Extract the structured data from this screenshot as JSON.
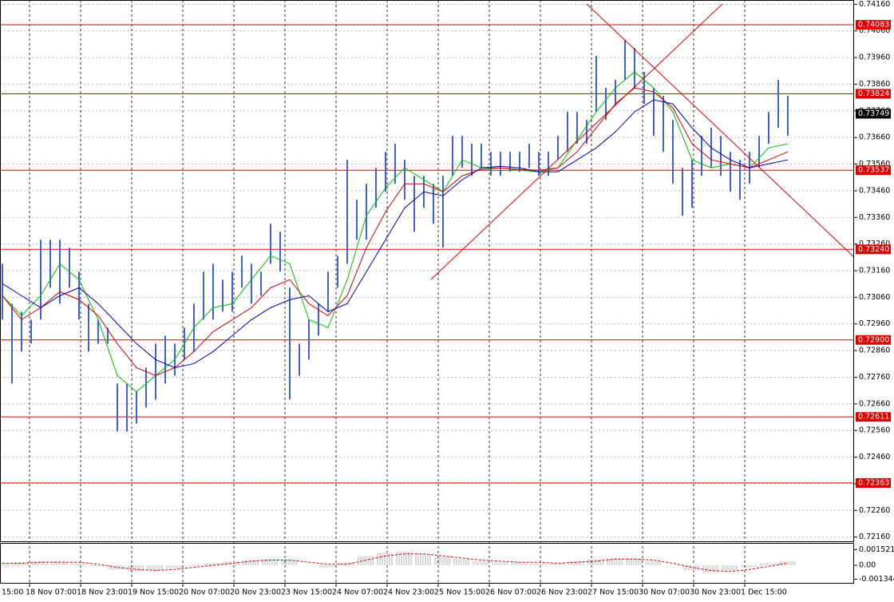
{
  "chart_data": {
    "type": "ohlc",
    "x_labels": [
      "15:00",
      "18 Nov 07:00",
      "18 Nov 23:00",
      "19 Nov 15:00",
      "20 Nov 07:00",
      "20 Nov 23:00",
      "23 Nov 15:00",
      "24 Nov 07:00",
      "24 Nov 23:00",
      "25 Nov 15:00",
      "26 Nov 07:00",
      "26 Nov 23:00",
      "27 Nov 15:00",
      "30 Nov 07:00",
      "30 Nov 23:00",
      "1 Dec 15:00"
    ],
    "high": [
      0.73186,
      0.73036,
      0.73006,
      0.72976,
      0.73276,
      0.73276,
      0.73276,
      0.73246,
      0.73156,
      0.73036,
      0.72976,
      0.72946,
      0.72736,
      0.72736,
      0.72706,
      0.72796,
      0.72886,
      0.72916,
      0.72886,
      0.72946,
      0.73036,
      0.73156,
      0.73186,
      0.73126,
      0.73156,
      0.73216,
      0.73186,
      0.73156,
      0.73336,
      0.73306,
      0.73096,
      0.72886,
      0.72976,
      0.73036,
      0.73156,
      0.73216,
      0.73576,
      0.73426,
      0.73486,
      0.73546,
      0.73606,
      0.73636,
      0.73576,
      0.73516,
      0.73516,
      0.73486,
      0.73516,
      0.73666,
      0.73666,
      0.73636,
      0.73636,
      0.73606,
      0.73606,
      0.73606,
      0.73606,
      0.73636,
      0.73606,
      0.73606,
      0.73666,
      0.73756,
      0.73756,
      0.73726,
      0.73966,
      0.73846,
      0.73876,
      0.74026,
      0.73996,
      0.73906,
      0.73846,
      0.73816,
      0.73726,
      0.73546,
      0.73576,
      0.73666,
      0.73696,
      0.73666,
      0.73606,
      0.73576,
      0.73606,
      0.73666,
      0.73756,
      0.73876,
      0.73816
    ],
    "low": [
      0.72976,
      0.72736,
      0.72856,
      0.72886,
      0.72976,
      0.73096,
      0.73036,
      0.73096,
      0.72976,
      0.72856,
      0.72886,
      0.72886,
      0.72556,
      0.72556,
      0.72586,
      0.72646,
      0.72676,
      0.72736,
      0.72766,
      0.72826,
      0.72856,
      0.72976,
      0.72976,
      0.73006,
      0.73006,
      0.73096,
      0.73036,
      0.73066,
      0.73186,
      0.73156,
      0.72676,
      0.72766,
      0.72826,
      0.72916,
      0.73006,
      0.73096,
      0.73186,
      0.73276,
      0.73276,
      0.73396,
      0.73456,
      0.73486,
      0.73426,
      0.73306,
      0.73396,
      0.73336,
      0.73246,
      0.73516,
      0.73546,
      0.73516,
      0.73546,
      0.73516,
      0.73516,
      0.73531,
      0.73531,
      0.73546,
      0.73516,
      0.73516,
      0.73576,
      0.73606,
      0.73636,
      0.73636,
      0.73756,
      0.73726,
      0.73786,
      0.73876,
      0.73846,
      0.73786,
      0.73666,
      0.73606,
      0.73486,
      0.73366,
      0.73396,
      0.73516,
      0.73546,
      0.73516,
      0.73456,
      0.73426,
      0.73486,
      0.73546,
      0.73636,
      0.73696,
      0.73666
    ],
    "color": "#3f62d0",
    "series": [
      {
        "color": "#00c000",
        "values": [
          0.73066,
          0.72991,
          0.73066,
          0.73186,
          0.73126,
          0.72976,
          0.72766,
          0.72706,
          0.72766,
          0.72826,
          0.72946,
          0.73021,
          0.73036,
          0.73126,
          0.73216,
          0.73186,
          0.72976,
          0.72946,
          0.73126,
          0.73366,
          0.73471,
          0.73546,
          0.73501,
          0.73456,
          0.73576,
          0.73546,
          0.73546,
          0.73537,
          0.73531,
          0.73546,
          0.73651,
          0.73756,
          0.73846,
          0.73906,
          0.73846,
          0.73756,
          0.73576,
          0.73546,
          0.73561,
          0.73546,
          0.73621,
          0.73636
        ]
      },
      {
        "color": "#d40000",
        "values": [
          0.73066,
          0.72976,
          0.73021,
          0.73081,
          0.73051,
          0.72991,
          0.72886,
          0.72796,
          0.72766,
          0.72796,
          0.72856,
          0.72931,
          0.72976,
          0.73021,
          0.73096,
          0.73126,
          0.73036,
          0.72991,
          0.73066,
          0.73246,
          0.73381,
          0.73486,
          0.73486,
          0.73456,
          0.73516,
          0.7354,
          0.73546,
          0.7354,
          0.73537,
          0.73546,
          0.73606,
          0.73696,
          0.73786,
          0.73846,
          0.73831,
          0.73771,
          0.73636,
          0.73576,
          0.73561,
          0.73546,
          0.73576,
          0.73606
        ]
      },
      {
        "color": "#0000b4",
        "values": [
          0.73111,
          0.73066,
          0.73021,
          0.73066,
          0.73096,
          0.73036,
          0.72961,
          0.72886,
          0.72826,
          0.72796,
          0.72811,
          0.72856,
          0.72916,
          0.72976,
          0.73021,
          0.73051,
          0.73066,
          0.73006,
          0.73036,
          0.73156,
          0.73276,
          0.73396,
          0.73456,
          0.73441,
          0.73501,
          0.73546,
          0.73552,
          0.73546,
          0.73531,
          0.73531,
          0.73576,
          0.73621,
          0.73681,
          0.73756,
          0.73801,
          0.73786,
          0.73696,
          0.73621,
          0.73576,
          0.73546,
          0.73561,
          0.73576
        ]
      }
    ],
    "ylim": [
      0.72144,
      0.74176
    ],
    "yticks": [
      {
        "value": 0.7416,
        "label": "0.74160"
      },
      {
        "value": 0.7406,
        "label": "0.74060"
      },
      {
        "value": 0.7396,
        "label": "0.73960"
      },
      {
        "value": 0.7386,
        "label": "0.73860"
      },
      {
        "value": 0.7376,
        "label": "0.73760"
      },
      {
        "value": 0.7366,
        "label": "0.73660"
      },
      {
        "value": 0.7356,
        "label": "0.73560"
      },
      {
        "value": 0.7346,
        "label": "0.73460"
      },
      {
        "value": 0.7336,
        "label": "0.73360"
      },
      {
        "value": 0.7326,
        "label": "0.73260"
      },
      {
        "value": 0.7316,
        "label": "0.73160"
      },
      {
        "value": 0.7306,
        "label": "0.73060"
      },
      {
        "value": 0.7296,
        "label": "0.72960"
      },
      {
        "value": 0.7286,
        "label": "0.72860"
      },
      {
        "value": 0.7276,
        "label": "0.72760"
      },
      {
        "value": 0.7266,
        "label": "0.72660"
      },
      {
        "value": 0.7256,
        "label": "0.72560"
      },
      {
        "value": 0.7246,
        "label": "0.72460"
      },
      {
        "value": 0.7236,
        "label": "0.72360"
      },
      {
        "value": 0.7226,
        "label": "0.72260"
      },
      {
        "value": 0.7216,
        "label": "0.72160"
      }
    ],
    "grid": true,
    "levels": [
      0.74083,
      0.73824,
      0.73537,
      0.7324,
      0.729,
      0.72611,
      0.72363
    ],
    "level_labels": [
      "0.74083",
      "0.73824",
      "0.73537",
      "0.73240",
      "0.72900",
      "0.72611",
      "0.72363"
    ],
    "level_color": "#e00000",
    "last_price": 0.73749,
    "oscillator": {
      "histogram": [
        0.0002,
        0.0003,
        0.0004,
        0.0004,
        0.0002,
        -0.0001,
        -0.0004,
        -0.0006,
        -0.0005,
        -0.0003,
        -0.0001,
        0.0002,
        0.0004,
        0.0005,
        0.0006,
        0.0005,
        0,
        -0.0002,
        0.0003,
        0.0009,
        0.0012,
        0.0013,
        0.0011,
        0.0008,
        0.0006,
        0.0004,
        0.0003,
        0.0003,
        0.0002,
        0.0002,
        0.0004,
        0.0006,
        0.0007,
        0.0007,
        0.0004,
        0,
        -0.0005,
        -0.0007,
        -0.0005,
        -0.0002,
        0.0002,
        0.0004
      ],
      "signal": [
        0.0002,
        0.0002,
        0.0003,
        0.0003,
        0.0003,
        0.0001,
        -0.0002,
        -0.0004,
        -0.0005,
        -0.0004,
        -0.0002,
        0,
        0.0002,
        0.0004,
        0.0005,
        0.0005,
        0.0003,
        0.0001,
        0.0001,
        0.0005,
        0.0009,
        0.0011,
        0.0011,
        0.0009,
        0.0007,
        0.0005,
        0.0004,
        0.0003,
        0.0003,
        0.0002,
        0.0003,
        0.0004,
        0.0006,
        0.0006,
        0.0005,
        0.0002,
        -0.0002,
        -0.0005,
        -0.0006,
        -0.0004,
        -0.0001,
        0.0002
      ],
      "ylim": [
        -0.00169,
        0.00208
      ],
      "yticks": [
        0.001521,
        {
          "value": 0,
          "label": "0.00"
        },
        -0.001344
      ]
    }
  }
}
